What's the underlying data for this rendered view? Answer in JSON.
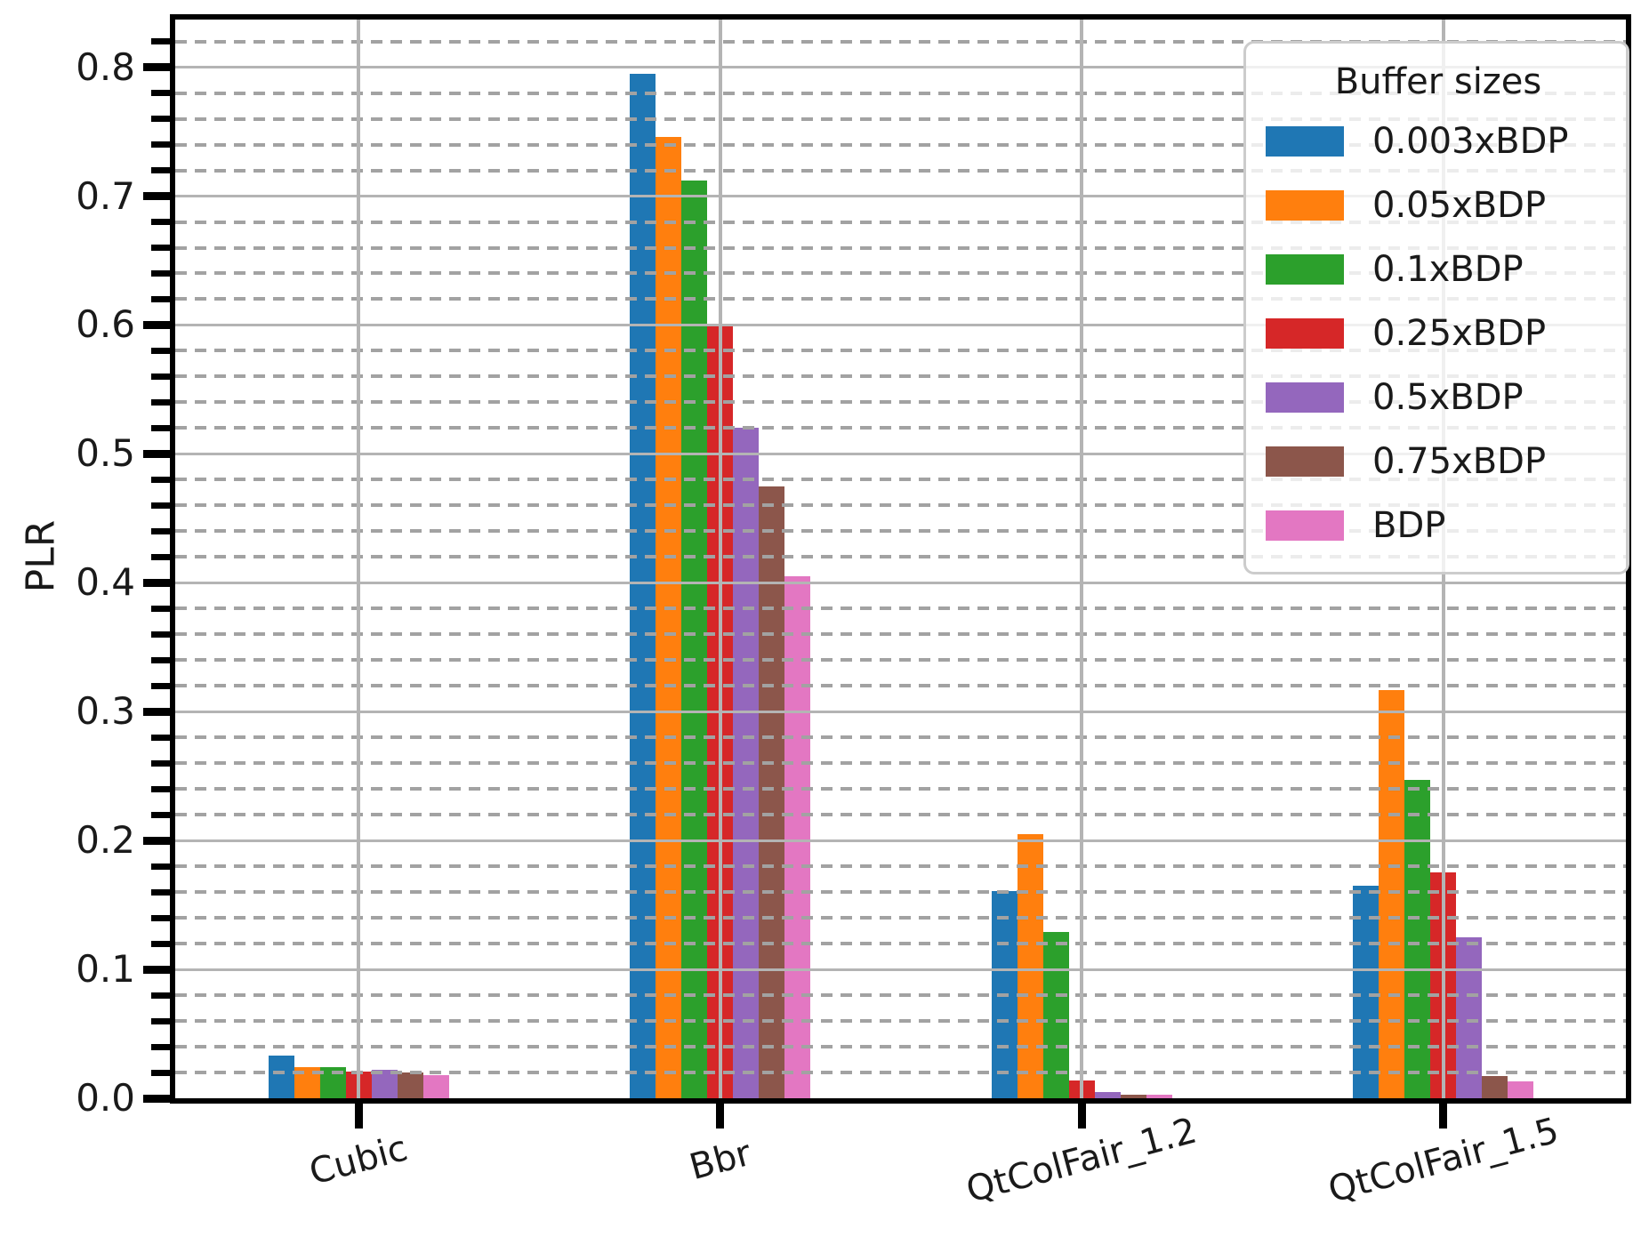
{
  "chart_data": {
    "type": "bar",
    "title": "",
    "xlabel": "",
    "ylabel": "PLR",
    "categories": [
      "Cubic",
      "Bbr",
      "QtColFair_1.2",
      "QtColFair_1.5"
    ],
    "series": [
      {
        "name": "0.003xBDP",
        "color": "#1f77b4",
        "values": [
          0.033,
          0.795,
          0.161,
          0.165
        ]
      },
      {
        "name": "0.05xBDP",
        "color": "#ff7f0e",
        "values": [
          0.024,
          0.746,
          0.205,
          0.317
        ]
      },
      {
        "name": "0.1xBDP",
        "color": "#2ca02c",
        "values": [
          0.024,
          0.712,
          0.129,
          0.247
        ]
      },
      {
        "name": "0.25xBDP",
        "color": "#d62728",
        "values": [
          0.021,
          0.6,
          0.014,
          0.175
        ]
      },
      {
        "name": "0.5xBDP",
        "color": "#9467bd",
        "values": [
          0.022,
          0.52,
          0.005,
          0.125
        ]
      },
      {
        "name": "0.75xBDP",
        "color": "#8c564b",
        "values": [
          0.02,
          0.475,
          0.003,
          0.017
        ]
      },
      {
        "name": "BDP",
        "color": "#e377c2",
        "values": [
          0.018,
          0.405,
          0.003,
          0.013
        ]
      }
    ],
    "legend": {
      "title": "Buffer sizes",
      "position": "upper right"
    },
    "ylim": [
      0,
      0.837
    ],
    "y_major_ticks": [
      0.0,
      0.1,
      0.2,
      0.3,
      0.4,
      0.5,
      0.6,
      0.7,
      0.8
    ],
    "y_tick_labels": [
      "0.0",
      "0.1",
      "0.2",
      "0.3",
      "0.4",
      "0.5",
      "0.6",
      "0.7",
      "0.8"
    ],
    "y_minor_step": 0.02,
    "grid": {
      "major_style": "solid",
      "minor_style": "dashed",
      "major_color": "#b4b4b4",
      "minor_color": "#a2a2a2",
      "axis_color": "#000000"
    }
  }
}
